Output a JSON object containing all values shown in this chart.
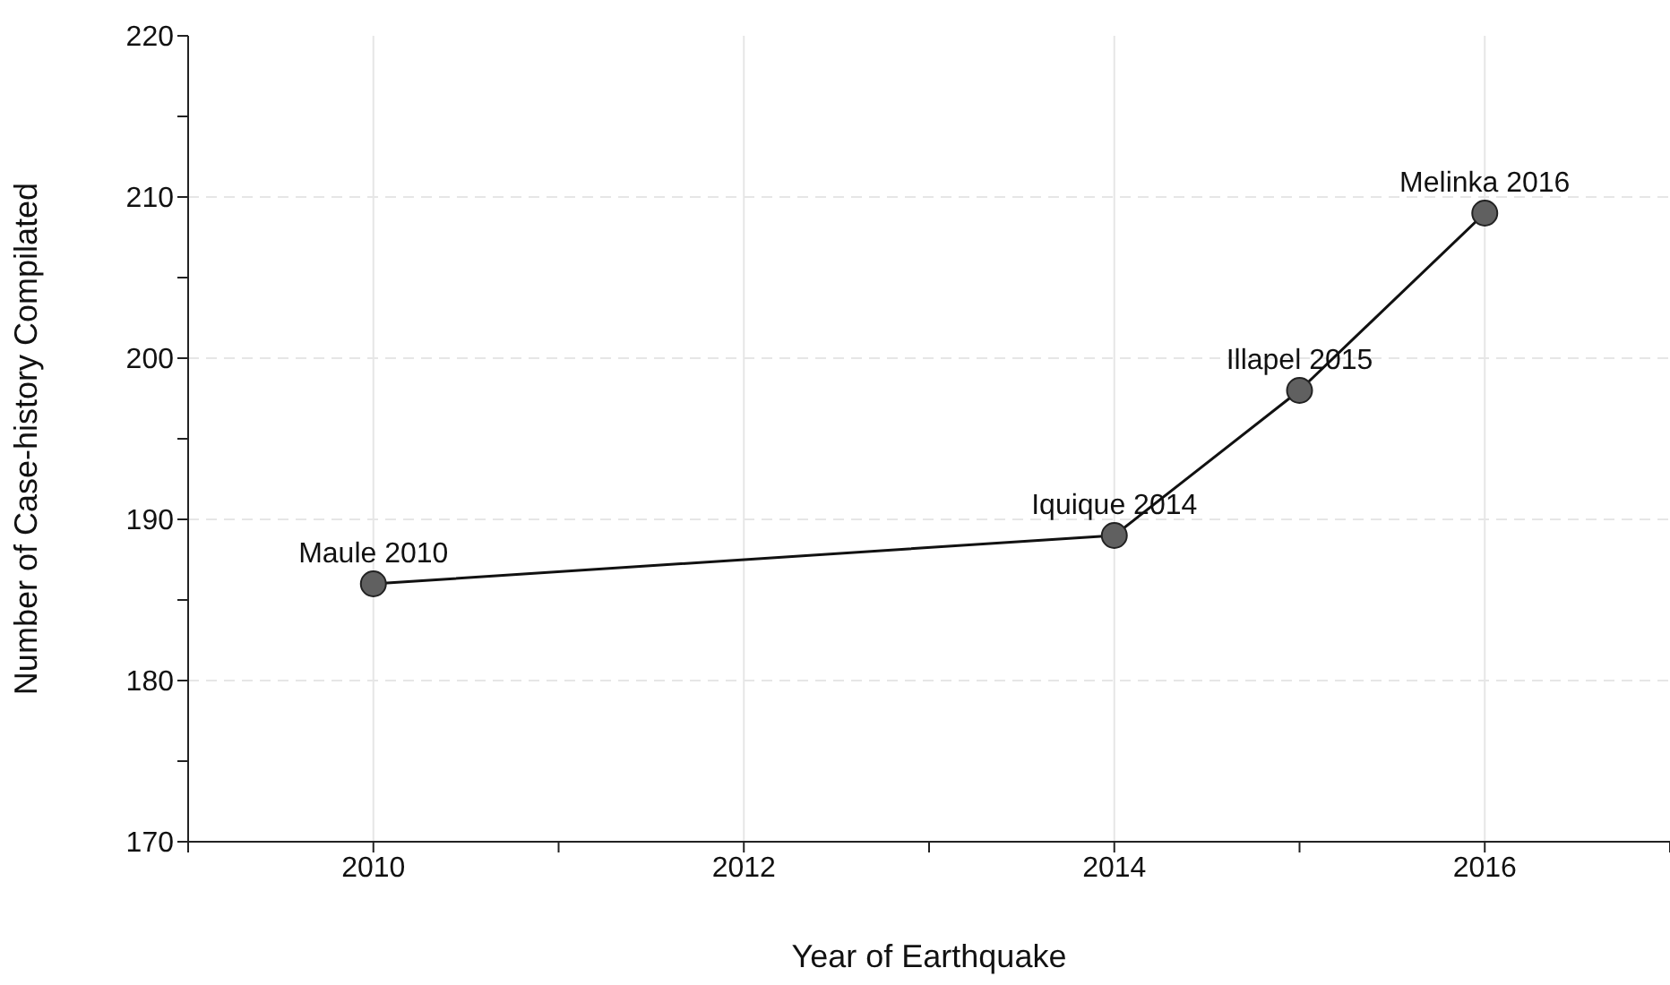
{
  "chart_data": {
    "type": "line",
    "xlabel": "Year of Earthquake",
    "ylabel": "Number of Case-history Compilated",
    "x": [
      2010,
      2014,
      2015,
      2016
    ],
    "series": [
      {
        "color": "#606060",
        "values": [
          186,
          189,
          198,
          209
        ]
      }
    ],
    "xlim": [
      2009,
      2017
    ],
    "xticks": [
      {
        "value": 2009,
        "label": null
      },
      2010,
      {
        "value": 2011,
        "label": null
      },
      2012,
      {
        "value": 2013,
        "label": null
      },
      2014,
      {
        "value": 2015,
        "label": null
      },
      2016,
      {
        "value": 2017,
        "label": null
      }
    ],
    "ylim": [
      170,
      220
    ],
    "yticks": [
      170,
      {
        "value": 175,
        "label": null
      },
      180,
      {
        "value": 185,
        "label": null
      },
      190,
      {
        "value": 195,
        "label": null
      },
      200,
      {
        "value": 205,
        "label": null
      },
      210,
      {
        "value": 215,
        "label": null
      },
      220
    ],
    "grid": true,
    "marker": "circle",
    "line_style": "solid",
    "annotations": [
      {
        "text": "Maule 2010",
        "x": 2010,
        "y": 186
      },
      {
        "text": "Iquique 2014",
        "x": 2014,
        "y": 189
      },
      {
        "text": "Illapel 2015",
        "x": 2015,
        "y": 198
      },
      {
        "text": "Melinka 2016",
        "x": 2016,
        "y": 209
      }
    ]
  }
}
